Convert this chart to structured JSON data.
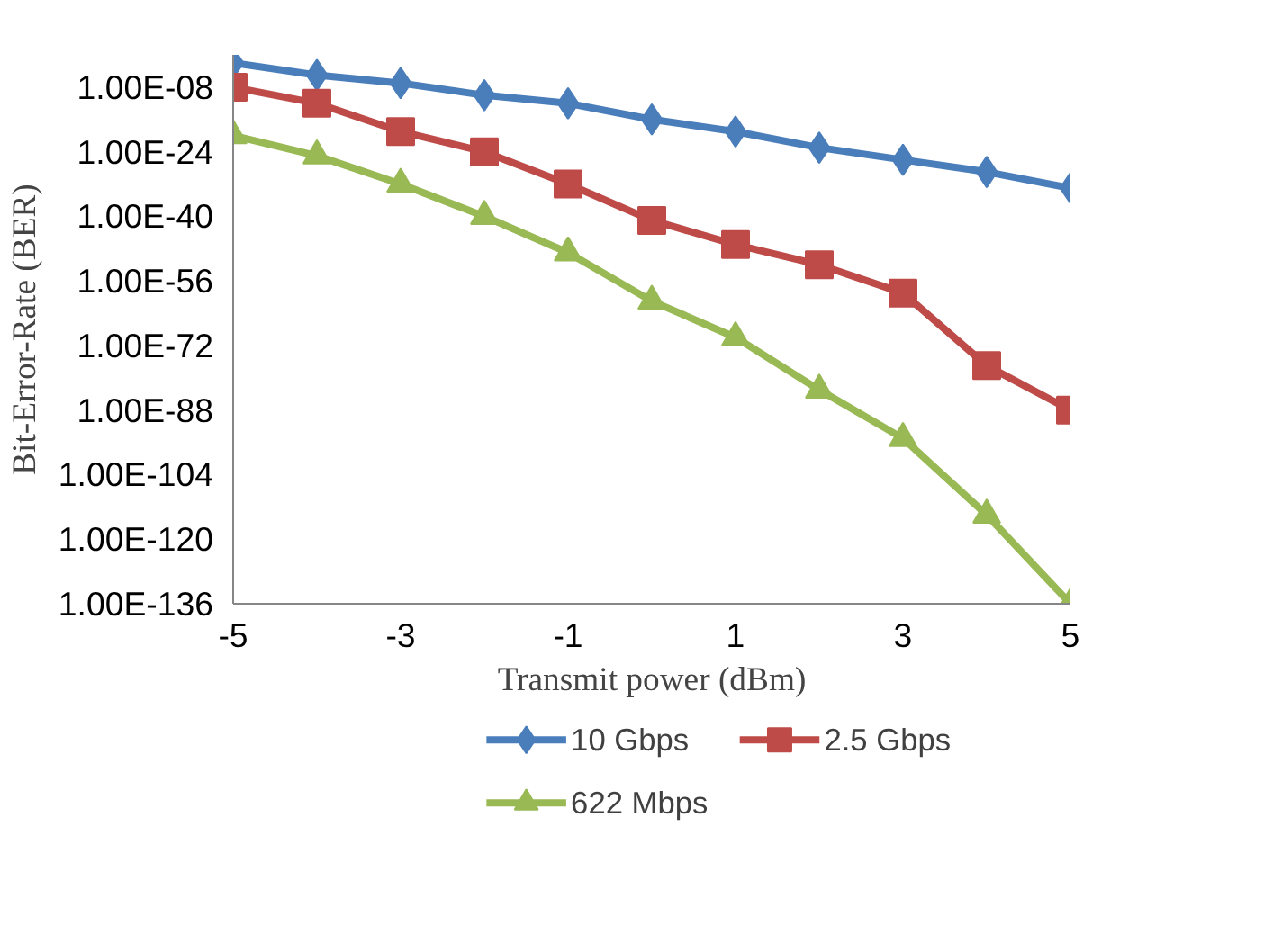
{
  "chart_data": {
    "type": "line",
    "xlabel": "Transmit power (dBm)",
    "ylabel": "Bit-Error-Rate (BER)",
    "x": [
      -5,
      -4,
      -3,
      -2,
      -1,
      0,
      1,
      2,
      3,
      4,
      5
    ],
    "series": [
      {
        "name": "10 Gbps",
        "color": "#4a7ebb",
        "marker": "diamond",
        "values": [
          0.01,
          1e-05,
          1e-07,
          1e-10,
          1e-12,
          1e-16,
          1e-19,
          1e-23,
          1e-26,
          1e-29,
          1e-33
        ]
      },
      {
        "name": "2.5 Gbps",
        "color": "#be4b48",
        "marker": "square",
        "values": [
          1e-08,
          1e-12,
          1e-19,
          1e-24,
          1e-32,
          1e-41,
          1e-47,
          1e-52,
          1e-59,
          1e-77,
          1e-88
        ]
      },
      {
        "name": "622 Mbps",
        "color": "#98b954",
        "marker": "triangle",
        "values": [
          1e-20,
          1e-25,
          1e-32,
          1e-40,
          1e-49,
          1e-61,
          1e-70,
          1e-83,
          1e-95,
          1e-114,
          1e-136
        ]
      }
    ],
    "log": "y",
    "xlim": [
      -5,
      5
    ],
    "xticks": [
      -5,
      -3,
      -1,
      1,
      3,
      5
    ],
    "ylim": [
      1e-136,
      1
    ],
    "yticks": [
      {
        "value": 1e-08,
        "label": "1.00E-08"
      },
      {
        "value": 1e-24,
        "label": "1.00E-24"
      },
      {
        "value": 1e-40,
        "label": "1.00E-40"
      },
      {
        "value": 1e-56,
        "label": "1.00E-56"
      },
      {
        "value": 1e-72,
        "label": "1.00E-72"
      },
      {
        "value": 1e-88,
        "label": "1.00E-88"
      },
      {
        "value": 1e-104,
        "label": "1.00E-104"
      },
      {
        "value": 1e-120,
        "label": "1.00E-120"
      },
      {
        "value": 1e-136,
        "label": "1.00E-136"
      }
    ],
    "grid": false,
    "legend": "bottom",
    "line_style": "solid"
  }
}
